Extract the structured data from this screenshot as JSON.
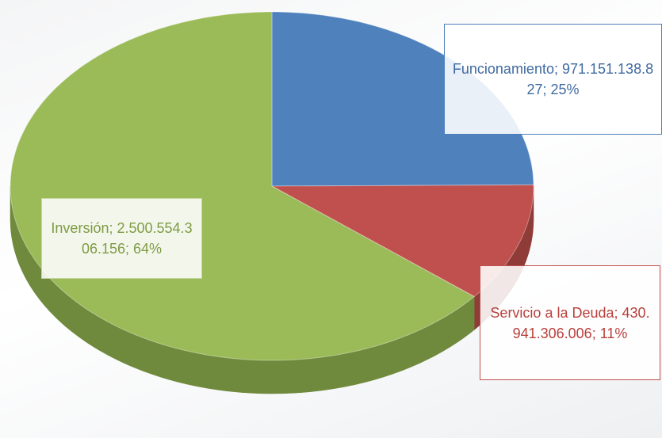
{
  "chart_data": {
    "type": "pie",
    "categories": [
      "Funcionamiento",
      "Servicio a la Deuda",
      "Inversión"
    ],
    "values": [
      971151138827,
      430941306006,
      2500554306156
    ],
    "value_labels": [
      "971.151.138.827",
      "430.941.306.006",
      "2.500.554.306.156"
    ],
    "percent_labels": [
      "25%",
      "11%",
      "64%"
    ],
    "label_separator": "; ",
    "colors": [
      "#4f81bd",
      "#c0504d",
      "#9bbb59"
    ],
    "side_colors": [
      "#3b6494",
      "#8f3b38",
      "#6f8a3c"
    ],
    "start_angle": 0,
    "clockwise": true
  }
}
